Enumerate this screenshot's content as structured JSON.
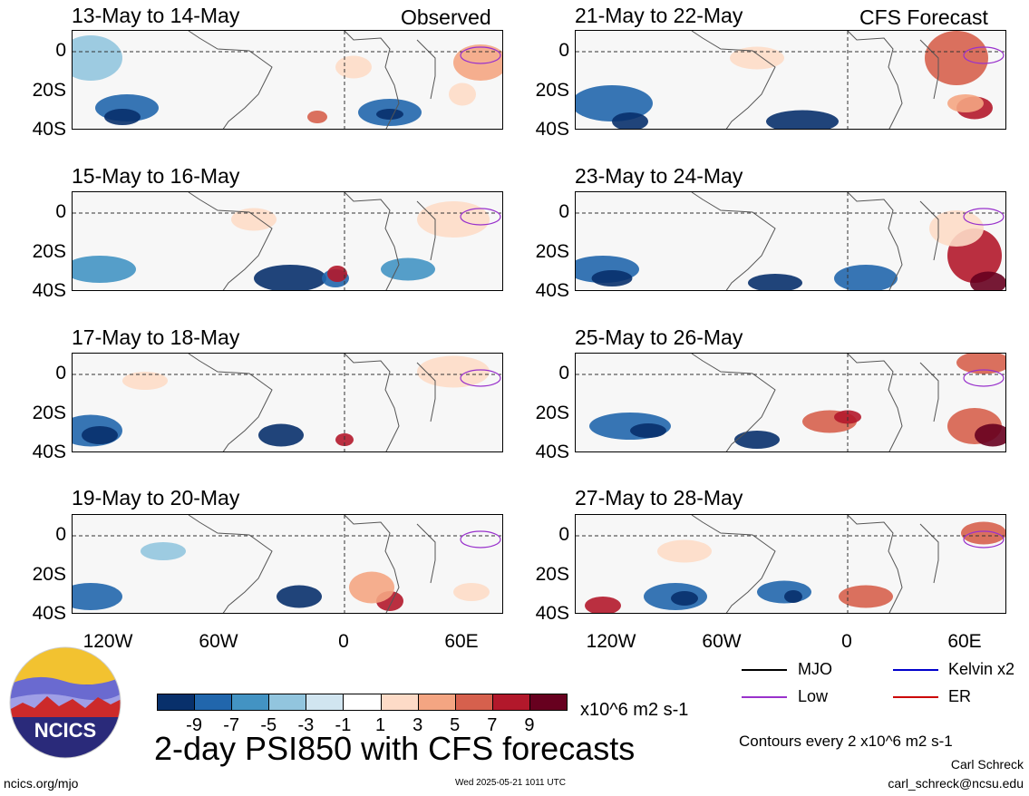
{
  "headers": {
    "left": "Observed",
    "right": "CFS Forecast"
  },
  "panels": [
    {
      "title": "13-May to 14-May",
      "group": "left",
      "row": 0
    },
    {
      "title": "15-May to 16-May",
      "group": "left",
      "row": 1
    },
    {
      "title": "17-May to 18-May",
      "group": "left",
      "row": 2
    },
    {
      "title": "19-May to 20-May",
      "group": "left",
      "row": 3
    },
    {
      "title": "21-May to 22-May",
      "group": "right",
      "row": 0
    },
    {
      "title": "23-May to 24-May",
      "group": "right",
      "row": 1
    },
    {
      "title": "25-May to 26-May",
      "group": "right",
      "row": 2
    },
    {
      "title": "27-May to 28-May",
      "group": "right",
      "row": 3
    }
  ],
  "lat_labels": [
    "0",
    "20S",
    "40S"
  ],
  "lon_labels": [
    "120W",
    "60W",
    "0",
    "60E"
  ],
  "colorbar": {
    "colors": [
      "#08306b",
      "#2166ac",
      "#4393c3",
      "#92c5de",
      "#d1e5f0",
      "#ffffff",
      "#fddbc7",
      "#f4a582",
      "#d6604d",
      "#b2182b",
      "#67001f"
    ],
    "labels": [
      "-9",
      "-7",
      "-5",
      "-3",
      "-1",
      "1",
      "3",
      "5",
      "7",
      "9"
    ],
    "units": "x10^6 m2 s-1"
  },
  "title": "2-day PSI850 with CFS forecasts",
  "legend": {
    "items": [
      {
        "label": "MJO",
        "color": "#000000"
      },
      {
        "label": "Kelvin x2",
        "color": "#0000cc"
      },
      {
        "label": "Low",
        "color": "#9932cc"
      },
      {
        "label": "ER",
        "color": "#cc0000"
      }
    ],
    "contours": "Contours every 2 x10^6 m2 s-1"
  },
  "footer": {
    "site": "ncics.org/mjo",
    "timestamp": "Wed 2025-05-21 1011 UTC",
    "author": "Carl Schreck",
    "email": "carl_schreck@ncsu.edu",
    "logo_text": "NCICS"
  }
}
